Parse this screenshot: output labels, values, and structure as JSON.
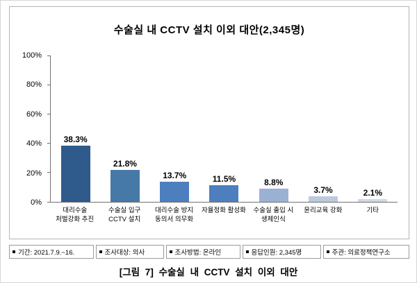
{
  "chart_data": {
    "type": "bar",
    "title": "수술실 내 CCTV 설치 이외 대안(2,345명)",
    "categories": [
      "대리수술\n처벌강화 추진",
      "수술실 입구\nCCTV 설치",
      "대리수술 방지\n동의서 의무화",
      "자율정화 활성화",
      "수술실 출입 시\n생체인식",
      "윤리교육 강화",
      "기타"
    ],
    "values": [
      38.3,
      21.8,
      13.7,
      11.5,
      8.8,
      3.7,
      2.1
    ],
    "value_labels": [
      "38.3%",
      "21.8%",
      "13.7%",
      "11.5%",
      "8.8%",
      "3.7%",
      "2.1%"
    ],
    "bar_colors": [
      "#2e5b8c",
      "#4678a8",
      "#4d7fbe",
      "#4d7fbe",
      "#9bb1d4",
      "#bccadf",
      "#cfd9e7"
    ],
    "ylim": [
      0,
      100
    ],
    "yticks": [
      0,
      20,
      40,
      60,
      80,
      100
    ],
    "ytick_labels": [
      "0%",
      "20%",
      "40%",
      "60%",
      "80%",
      "100%"
    ],
    "xlabel": "",
    "ylabel": "",
    "grid": false,
    "legend": false
  },
  "footer": {
    "items": [
      {
        "label": "기간: 2021.7.9.~16."
      },
      {
        "label": "조사대상: 의사"
      },
      {
        "label": "조사방법: 온라인"
      },
      {
        "label": "응답인원: 2,345명"
      },
      {
        "label": "주관: 의료정책연구소"
      }
    ]
  },
  "caption": "[그림 7] 수술실 내 CCTV 설치 이외 대안"
}
